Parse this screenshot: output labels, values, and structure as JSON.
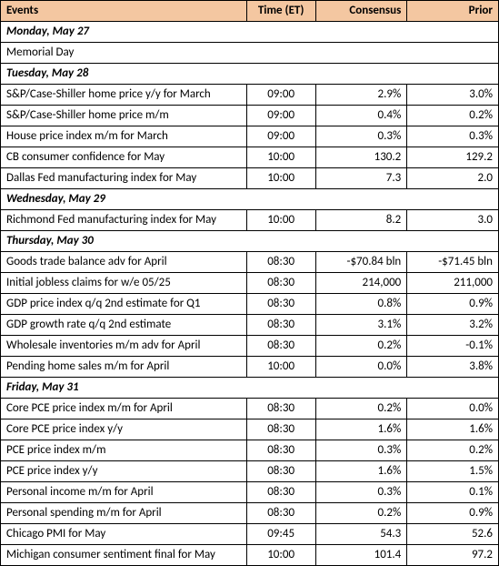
{
  "header": {
    "bg": "#f4c7a1",
    "cols": [
      "Events",
      "Time (ET)",
      "Consensus",
      "Prior"
    ]
  },
  "days": [
    {
      "label": "Monday, May 27",
      "note": "Memorial Day",
      "events": []
    },
    {
      "label": "Tuesday, May 28",
      "events": [
        {
          "name": "S&P/Case-Shiller home price y/y for March",
          "time": "09:00",
          "consensus": "2.9%",
          "prior": "3.0%"
        },
        {
          "name": "S&P/Case-Shiller home price m/m",
          "time": "09:00",
          "consensus": "0.4%",
          "prior": "0.2%"
        },
        {
          "name": "House price index m/m for March",
          "time": "09:00",
          "consensus": "0.3%",
          "prior": "0.3%"
        },
        {
          "name": "CB consumer confidence for May",
          "time": "10:00",
          "consensus": "130.2",
          "prior": "129.2"
        },
        {
          "name": "Dallas Fed manufacturing index for May",
          "time": "10:00",
          "consensus": "7.3",
          "prior": "2.0"
        }
      ]
    },
    {
      "label": "Wednesday, May 29",
      "events": [
        {
          "name": "Richmond Fed manufacturing index for May",
          "time": "10:00",
          "consensus": "8.2",
          "prior": "3.0"
        }
      ]
    },
    {
      "label": "Thursday, May 30",
      "events": [
        {
          "name": "Goods trade balance adv for April",
          "time": "08:30",
          "consensus": "-$70.84 bln",
          "prior": "-$71.45 bln"
        },
        {
          "name": "Initial jobless claims for w/e 05/25",
          "time": "08:30",
          "consensus": "214,000",
          "prior": "211,000"
        },
        {
          "name": "GDP price index q/q 2nd estimate for Q1",
          "time": "08:30",
          "consensus": "0.8%",
          "prior": "0.9%"
        },
        {
          "name": "GDP growth rate q/q 2nd estimate",
          "time": "08:30",
          "consensus": "3.1%",
          "prior": "3.2%"
        },
        {
          "name": "Wholesale inventories m/m adv for April",
          "time": "08:30",
          "consensus": "0.2%",
          "prior": "-0.1%"
        },
        {
          "name": "Pending home sales m/m for April",
          "time": "10:00",
          "consensus": "0.0%",
          "prior": "3.8%"
        }
      ]
    },
    {
      "label": "Friday, May 31",
      "events": [
        {
          "name": "Core PCE price index m/m for April",
          "time": "08:30",
          "consensus": "0.2%",
          "prior": "0.0%"
        },
        {
          "name": "Core PCE price index y/y",
          "time": "08:30",
          "consensus": "1.6%",
          "prior": "1.6%"
        },
        {
          "name": "PCE price index m/m",
          "time": "08:30",
          "consensus": "0.3%",
          "prior": "0.2%"
        },
        {
          "name": "PCE price index y/y",
          "time": "08:30",
          "consensus": "1.6%",
          "prior": "1.5%"
        },
        {
          "name": "Personal income m/m for April",
          "time": "08:30",
          "consensus": "0.3%",
          "prior": "0.1%"
        },
        {
          "name": "Personal spending m/m for April",
          "time": "08:30",
          "consensus": "0.2%",
          "prior": "0.9%"
        },
        {
          "name": "Chicago PMI for May",
          "time": "09:45",
          "consensus": "54.3",
          "prior": "52.6"
        },
        {
          "name": "Michigan consumer sentiment final for May",
          "time": "10:00",
          "consensus": "101.4",
          "prior": "97.2"
        }
      ]
    }
  ]
}
